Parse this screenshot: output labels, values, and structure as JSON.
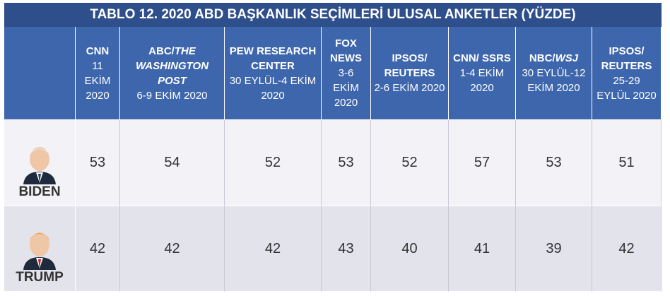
{
  "title": "TABLO 12. 2020 ABD BAŞKANLIK SEÇİMLERİ ULUSAL ANKETLER (YÜZDE)",
  "table": {
    "columns": [
      {
        "name_parts": [
          {
            "text": "CNN"
          }
        ],
        "date": "11 EKİM 2020"
      },
      {
        "name_parts": [
          {
            "text": "ABC/"
          },
          {
            "text": "THE WASHINGTON POST",
            "italic": true
          }
        ],
        "date": "6-9 EKİM 2020"
      },
      {
        "name_parts": [
          {
            "text": "PEW RESEARCH CENTER"
          }
        ],
        "date": "30 EYLÜL-4 EKİM 2020"
      },
      {
        "name_parts": [
          {
            "text": "FOX NEWS"
          }
        ],
        "date": "3-6 EKİM 2020"
      },
      {
        "name_parts": [
          {
            "text": "IPSOS/ REUTERS"
          }
        ],
        "date": "2-6 EKİM 2020"
      },
      {
        "name_parts": [
          {
            "text": "CNN/ SSRS"
          }
        ],
        "date": "1-4 EKİM 2020"
      },
      {
        "name_parts": [
          {
            "text": "NBC/"
          },
          {
            "text": "WSJ",
            "italic": true
          }
        ],
        "date": "30 EYLÜL-12 EKİM 2020"
      },
      {
        "name_parts": [
          {
            "text": "IPSOS/ REUTERS"
          }
        ],
        "date": "25-29 EYLÜL 2020"
      }
    ],
    "rows": [
      {
        "candidate": "BIDEN",
        "values": [
          53,
          54,
          52,
          53,
          52,
          57,
          53,
          51
        ]
      },
      {
        "candidate": "TRUMP",
        "values": [
          42,
          42,
          42,
          43,
          40,
          41,
          39,
          42
        ]
      }
    ]
  }
}
